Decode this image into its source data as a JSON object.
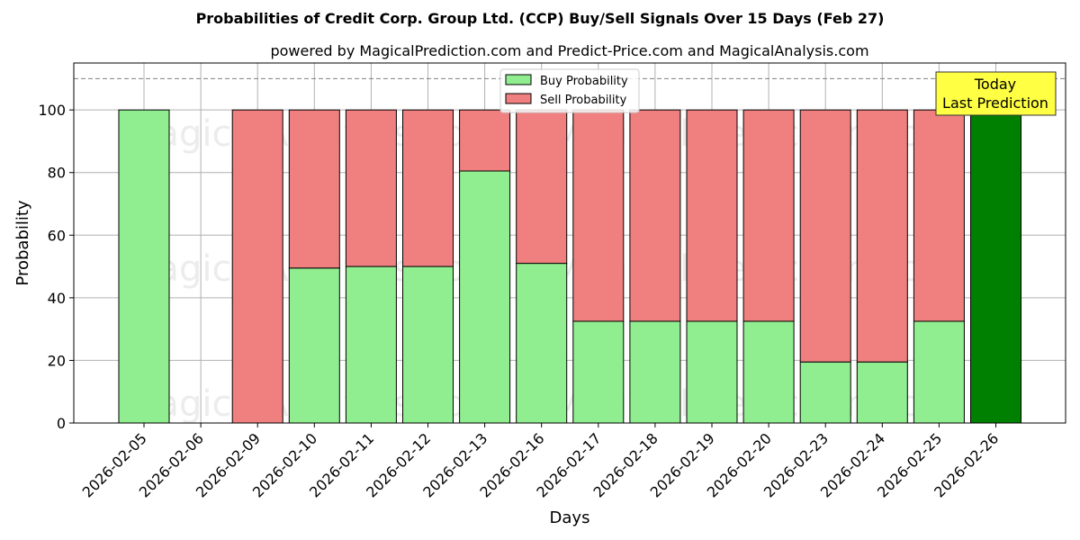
{
  "chart_data": {
    "type": "bar",
    "title": "Probabilities of Credit Corp. Group Ltd. (CCP) Buy/Sell Signals Over 15 Days (Feb 27)",
    "subtitle": "powered by MagicalPrediction.com and Predict-Price.com and MagicalAnalysis.com",
    "xlabel": "Days",
    "ylabel": "Probability",
    "ylim": [
      0,
      115
    ],
    "yticks": [
      0,
      20,
      40,
      60,
      80,
      100
    ],
    "reference_line": 110,
    "grid": true,
    "legend_position": "top-center",
    "stacked": true,
    "categories": [
      "2026-02-05",
      "2026-02-06",
      "2026-02-09",
      "2026-02-10",
      "2026-02-11",
      "2026-02-12",
      "2026-02-13",
      "2026-02-16",
      "2026-02-17",
      "2026-02-18",
      "2026-02-19",
      "2026-02-20",
      "2026-02-23",
      "2026-02-24",
      "2026-02-25",
      "2026-02-26"
    ],
    "series": [
      {
        "name": "Buy Probability",
        "color": "#90ee90",
        "values": [
          100,
          0,
          0,
          49.5,
          50,
          50,
          80.5,
          51,
          32.5,
          32.5,
          32.5,
          32.5,
          19.5,
          19.5,
          32.5,
          100
        ]
      },
      {
        "name": "Sell Probability",
        "color": "#f08080",
        "values": [
          0,
          0,
          100,
          50.5,
          50,
          50,
          19.5,
          49,
          67.5,
          67.5,
          67.5,
          67.5,
          80.5,
          80.5,
          67.5,
          0
        ]
      }
    ],
    "highlight": {
      "index": 15,
      "color": "#008000"
    },
    "annotation": {
      "line1": "Today",
      "line2": "Last Prediction",
      "background": "#ffff44"
    },
    "watermarks": [
      "MagicalAnalysis.com",
      "MagicalPrediction.com"
    ]
  }
}
